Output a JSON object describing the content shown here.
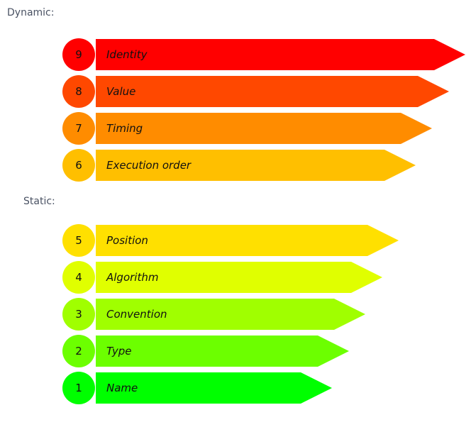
{
  "sections": {
    "dynamic_label": "Dynamic:",
    "static_label": "Static:"
  },
  "levels": [
    {
      "number": "9",
      "label": "Identity",
      "color": "#ff0000",
      "rank": 9
    },
    {
      "number": "8",
      "label": "Value",
      "color": "#ff4800",
      "rank": 8
    },
    {
      "number": "7",
      "label": "Timing",
      "color": "#ff8c00",
      "rank": 7
    },
    {
      "number": "6",
      "label": "Execution order",
      "color": "#ffbf00",
      "rank": 6
    },
    {
      "number": "5",
      "label": "Position",
      "color": "#ffe000",
      "rank": 5
    },
    {
      "number": "4",
      "label": "Algorithm",
      "color": "#e0ff00",
      "rank": 4
    },
    {
      "number": "3",
      "label": "Convention",
      "color": "#a0ff00",
      "rank": 3
    },
    {
      "number": "2",
      "label": "Type",
      "color": "#6cff00",
      "rank": 2
    },
    {
      "number": "1",
      "label": "Name",
      "color": "#00ff00",
      "rank": 1
    }
  ]
}
